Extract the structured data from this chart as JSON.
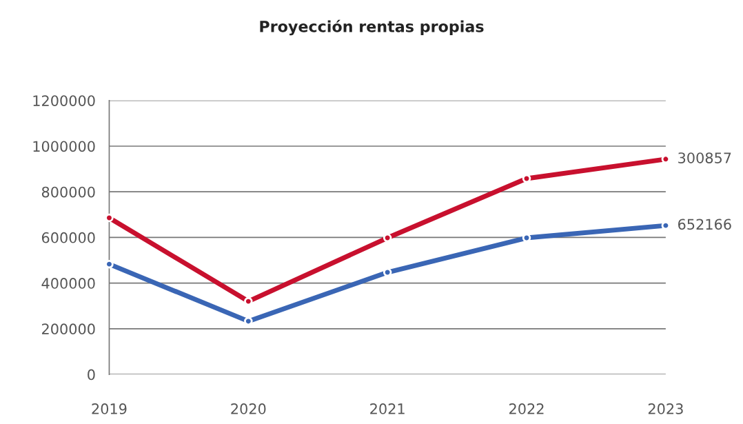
{
  "chart_data": {
    "type": "line",
    "title": "Proyección rentas propias",
    "categories": [
      "2019",
      "2020",
      "2021",
      "2022",
      "2023"
    ],
    "series": [
      {
        "color": "#c8102e",
        "values": [
          686000,
          320000,
          598000,
          858000,
          943000
        ]
      },
      {
        "color": "#3a66b5",
        "values": [
          483000,
          233000,
          447000,
          598000,
          652166
        ],
        "value_labels": [
          null,
          null,
          null,
          null,
          "652166"
        ]
      }
    ],
    "ylim": [
      0,
      1200000
    ],
    "yticks": [
      0,
      200000,
      400000,
      600000,
      800000,
      1000000,
      1200000
    ],
    "annotations": [
      {
        "text": "300857",
        "x": "2023",
        "y": 943000
      }
    ],
    "grid": "y",
    "marker": "circle",
    "line_style": "solid",
    "legend": false
  }
}
